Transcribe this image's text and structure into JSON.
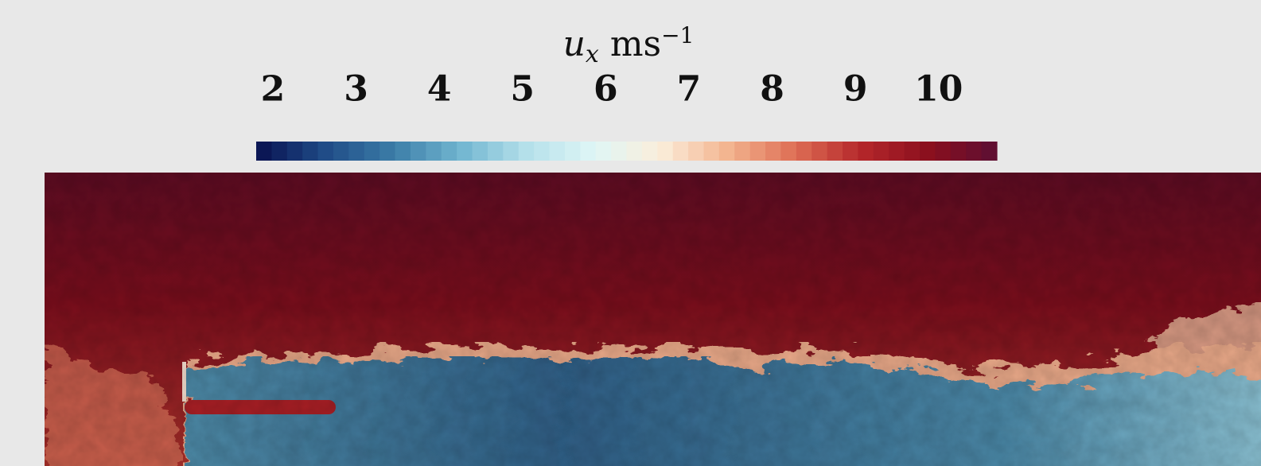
{
  "chart_data": {
    "type": "contour",
    "colorbar_label": {
      "symbol": "u",
      "subscript": "x",
      "unit": "ms",
      "unit_exponent": "−1"
    },
    "clim": [
      1.8,
      10.7
    ],
    "cticks": [
      2,
      3,
      4,
      5,
      6,
      7,
      8,
      9,
      10
    ],
    "colormap": [
      "#08104f",
      "#1f4a86",
      "#3a7ba6",
      "#6fb4cf",
      "#b4e0ea",
      "#def6f6",
      "#fbeedb",
      "#f3b48f",
      "#de6e55",
      "#b4262a",
      "#8a0f1e",
      "#5c0f33"
    ]
  }
}
